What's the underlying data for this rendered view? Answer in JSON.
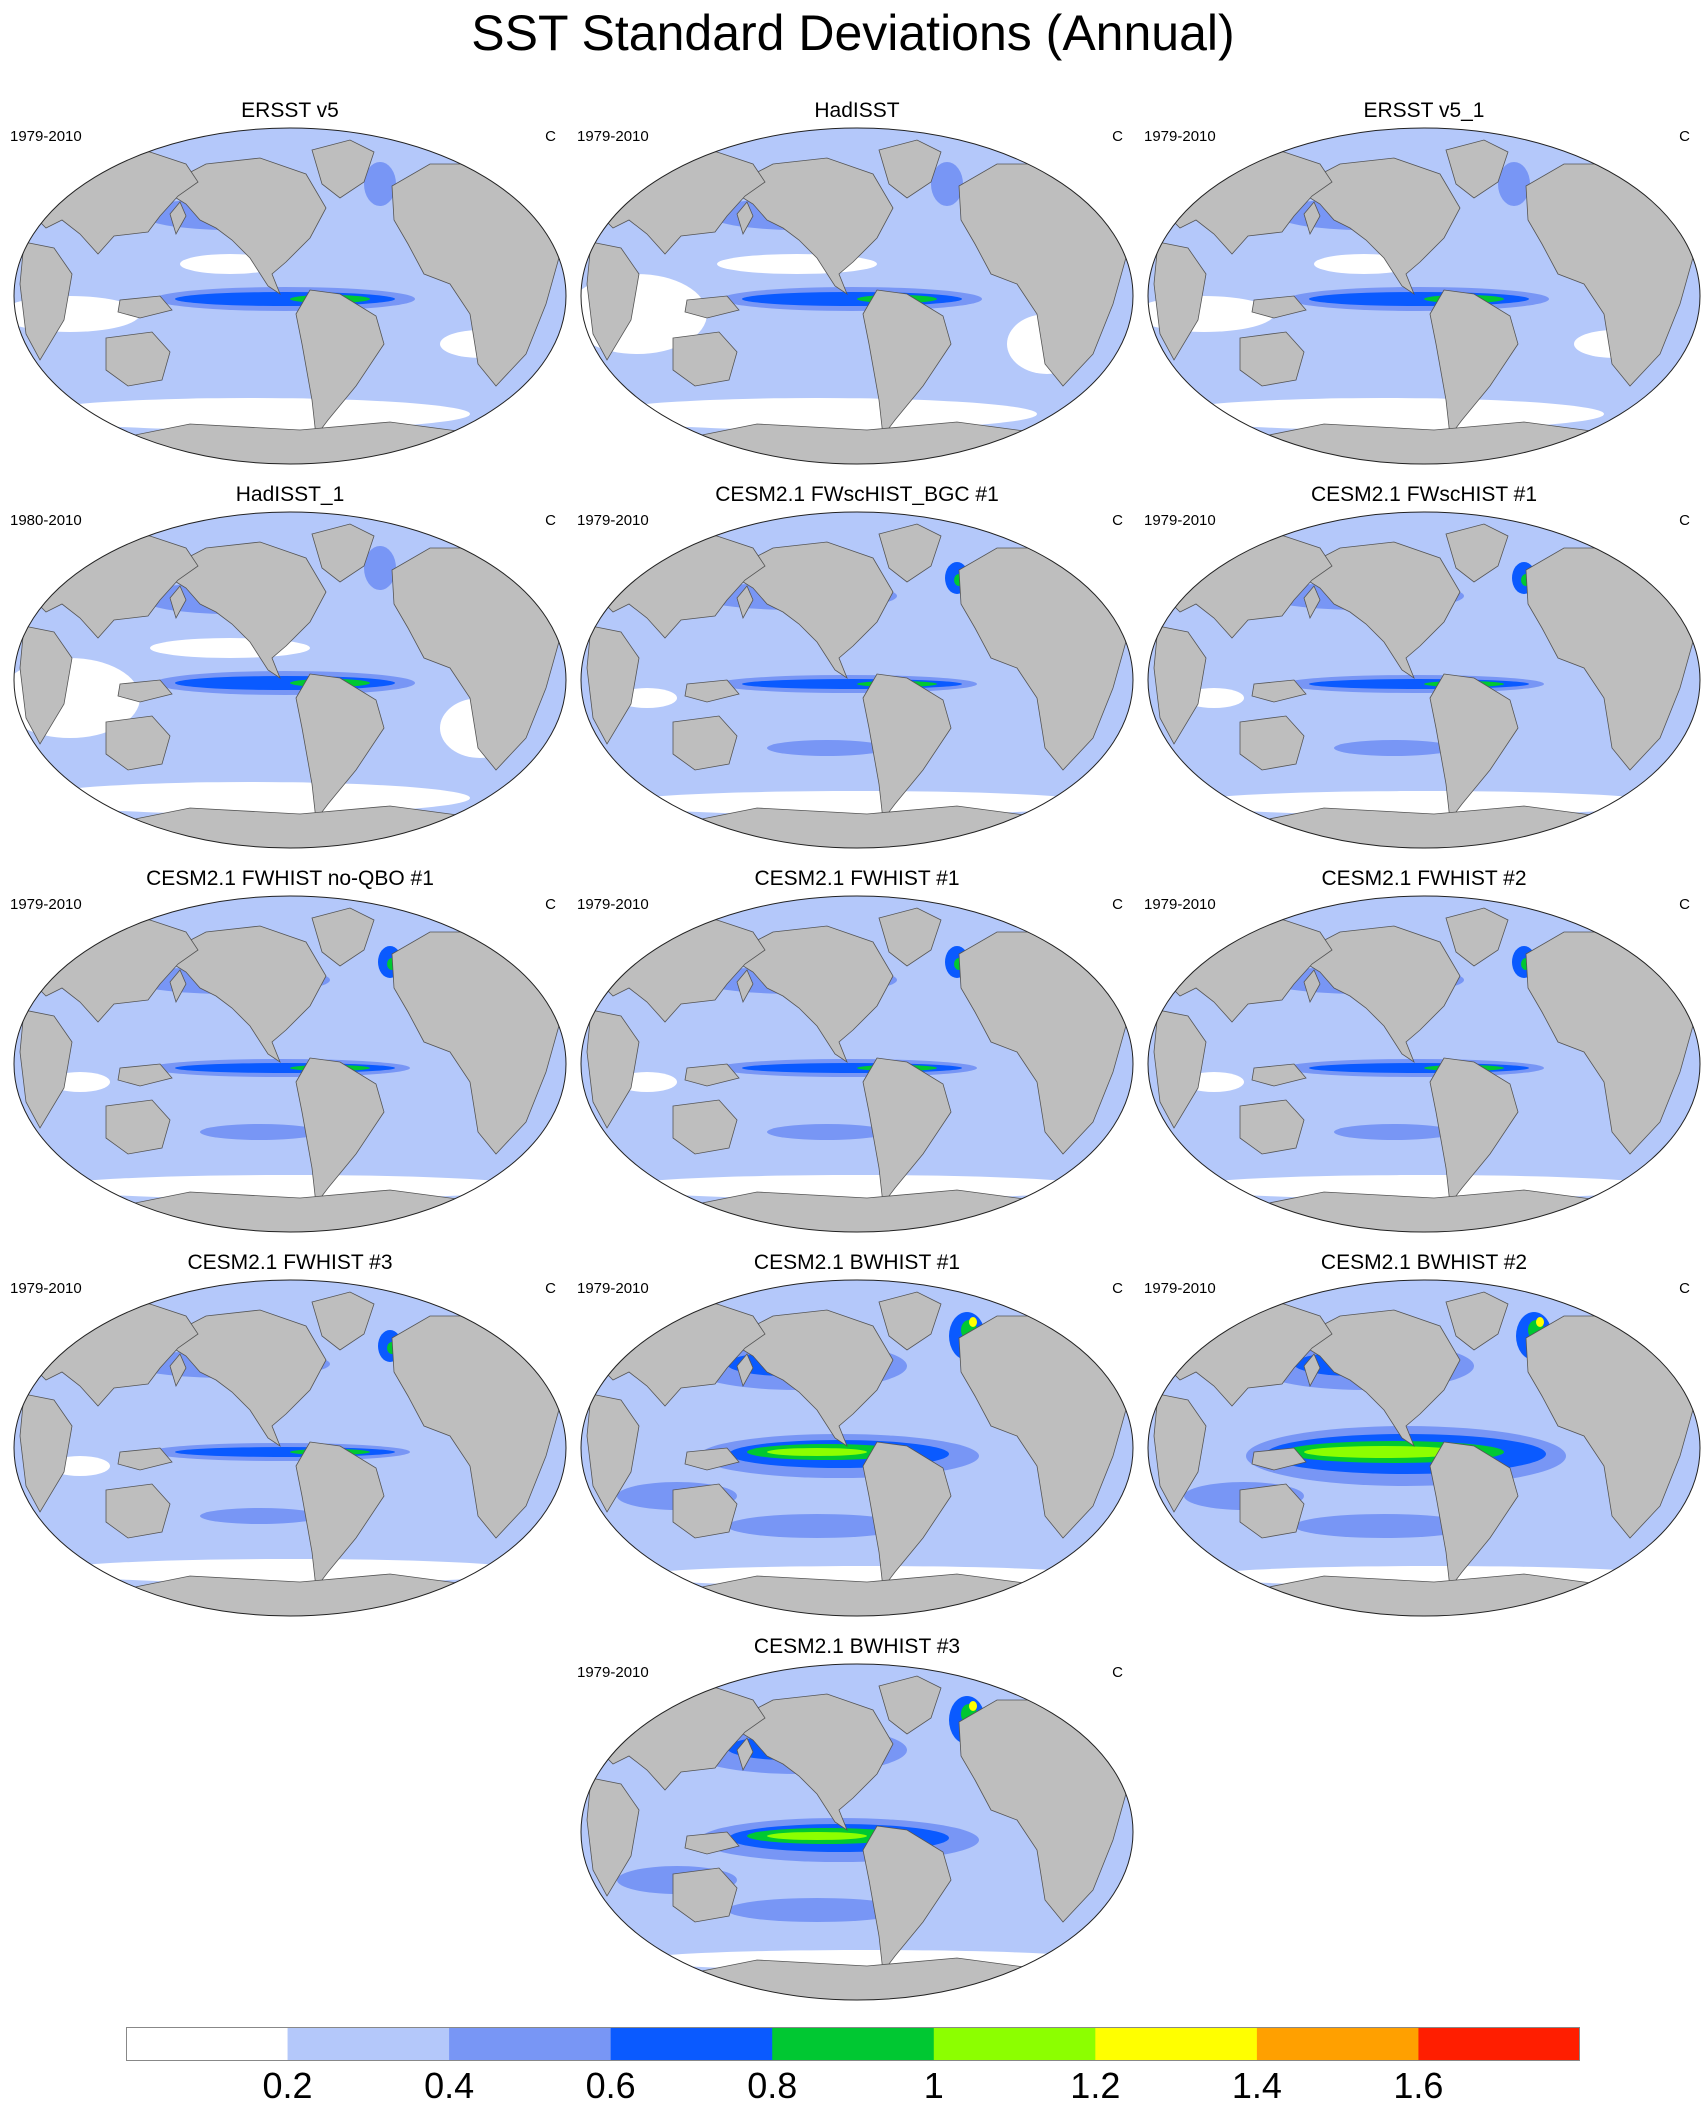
{
  "title": "SST Standard Deviations (Annual)",
  "panels": [
    {
      "name": "ERSST v5",
      "period": "1979-2010",
      "unit": "C",
      "style": "obs"
    },
    {
      "name": "HadISST",
      "period": "1979-2010",
      "unit": "C",
      "style": "obs-white"
    },
    {
      "name": "ERSST v5_1",
      "period": "1979-2010",
      "unit": "C",
      "style": "obs"
    },
    {
      "name": "HadISST_1",
      "period": "1980-2010",
      "unit": "C",
      "style": "obs-white"
    },
    {
      "name": "CESM2.1 FWscHIST_BGC #1",
      "period": "1979-2010",
      "unit": "C",
      "style": "fw"
    },
    {
      "name": "CESM2.1 FWscHIST #1",
      "period": "1979-2010",
      "unit": "C",
      "style": "fw"
    },
    {
      "name": "CESM2.1 FWHIST no-QBO #1",
      "period": "1979-2010",
      "unit": "C",
      "style": "fw"
    },
    {
      "name": "CESM2.1 FWHIST #1",
      "period": "1979-2010",
      "unit": "C",
      "style": "fw"
    },
    {
      "name": "CESM2.1 FWHIST #2",
      "period": "1979-2010",
      "unit": "C",
      "style": "fw"
    },
    {
      "name": "CESM2.1 FWHIST #3",
      "period": "1979-2010",
      "unit": "C",
      "style": "fw"
    },
    {
      "name": "CESM2.1 BWHIST #1",
      "period": "1979-2010",
      "unit": "C",
      "style": "bw"
    },
    {
      "name": "CESM2.1 BWHIST #2",
      "period": "1979-2010",
      "unit": "C",
      "style": "bw-strong"
    },
    {
      "name": "CESM2.1 BWHIST #3",
      "period": "1979-2010",
      "unit": "C",
      "style": "bw"
    }
  ],
  "colorbar": {
    "labels": [
      "0.2",
      "0.4",
      "0.6",
      "0.8",
      "1",
      "1.2",
      "1.4",
      "1.6"
    ],
    "colors": [
      "#ffffff",
      "#b4c8fa",
      "#7896f5",
      "#0a5aff",
      "#00c832",
      "#8cff00",
      "#ffff00",
      "#ffa000",
      "#ff1e00"
    ]
  }
}
